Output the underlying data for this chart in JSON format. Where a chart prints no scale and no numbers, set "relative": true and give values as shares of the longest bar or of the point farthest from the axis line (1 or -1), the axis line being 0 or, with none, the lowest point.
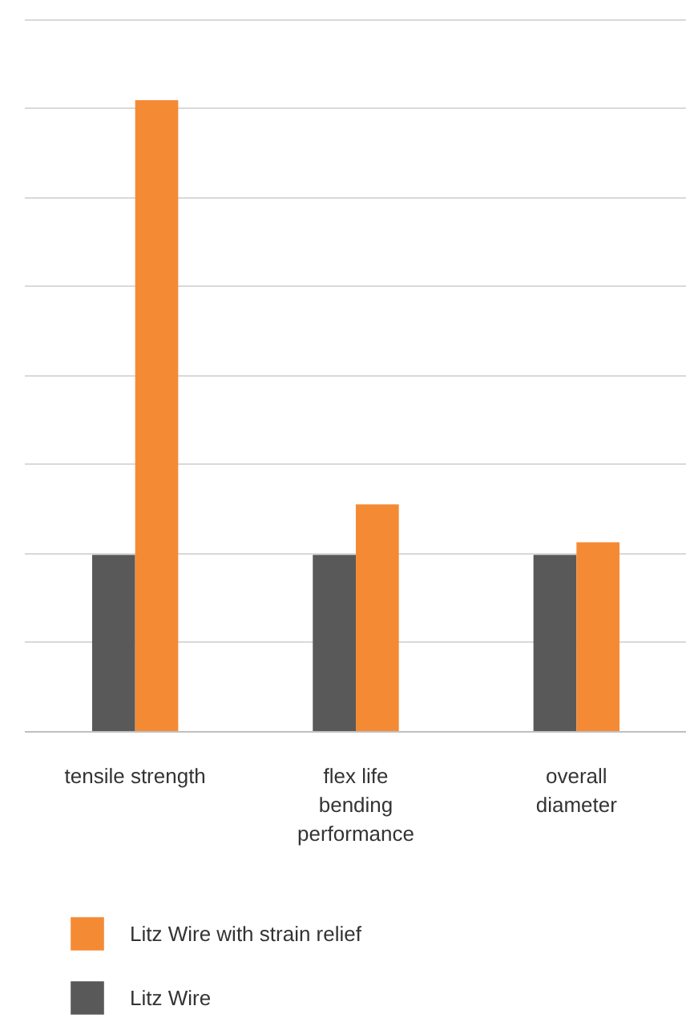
{
  "chart_data": {
    "type": "bar",
    "relative": true,
    "categories": [
      "tensile strength",
      "flex life\nbending\nperformance",
      "overall\ndiameter"
    ],
    "series": [
      {
        "name": "Litz Wire",
        "color": "#595959",
        "values": [
          0.28,
          0.28,
          0.28
        ]
      },
      {
        "name": "Litz Wire with strain relief",
        "color": "#f58a35",
        "values": [
          1,
          0.36,
          0.3
        ]
      }
    ],
    "grid": "y",
    "legend": "bottom"
  }
}
